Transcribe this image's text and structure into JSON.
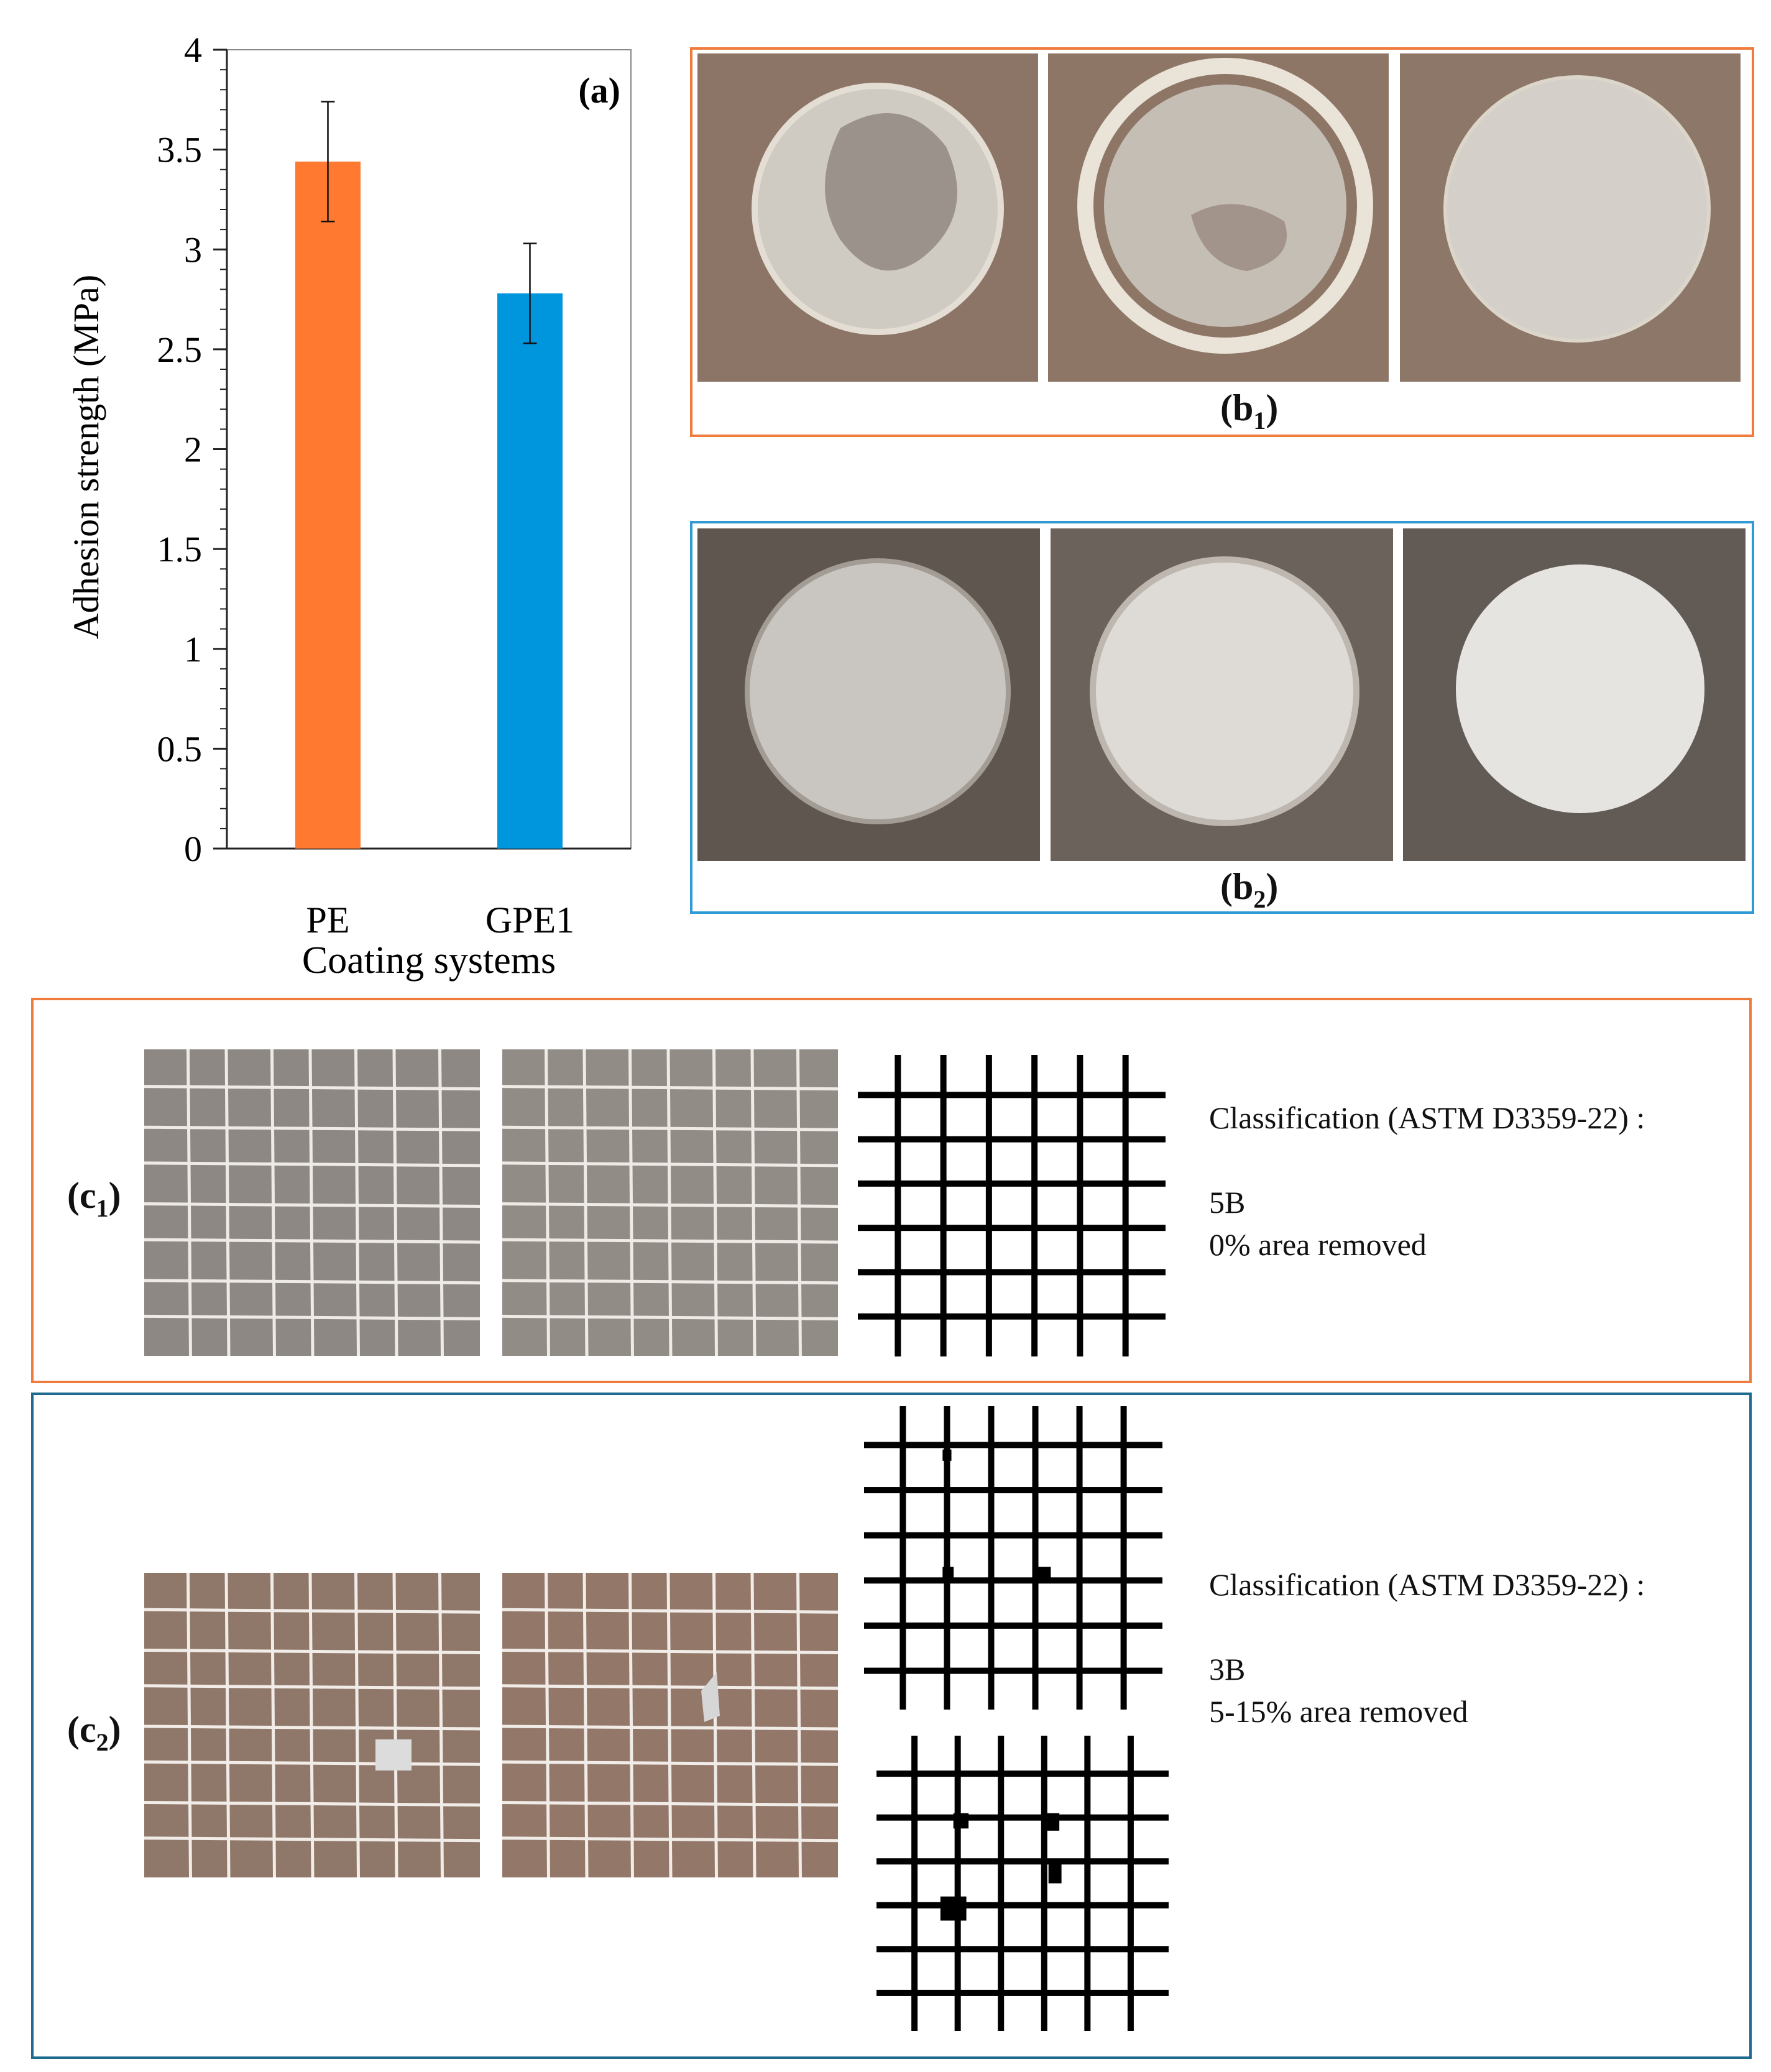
{
  "chart_data": {
    "type": "bar",
    "panel_label": "(a)",
    "categories": [
      "PE",
      "GPE1"
    ],
    "values": [
      3.44,
      2.78
    ],
    "errors": [
      0.3,
      0.25
    ],
    "colors": [
      "#ff7930",
      "#0096de"
    ],
    "ylabel": "Adhesion strength (MPa)",
    "xlabel": "Coating systems",
    "ylim": [
      0,
      4
    ],
    "yticks": [
      "0",
      "0.5",
      "1",
      "1.5",
      "2",
      "2.5",
      "3",
      "3.5",
      "4"
    ],
    "grid": false
  },
  "panels": {
    "b1": {
      "label": "b",
      "sub": "1"
    },
    "b2": {
      "label": "b",
      "sub": "2"
    },
    "c1": {
      "label": "c",
      "sub": "1"
    },
    "c2": {
      "label": "c",
      "sub": "2"
    }
  },
  "classification": {
    "c1": {
      "title": "Classification (ASTM D3359-22) :",
      "grade": "5B",
      "area": "0% area removed"
    },
    "c2": {
      "title": "Classification (ASTM D3359-22) :",
      "grade": "3B",
      "area": "5-15% area removed"
    }
  },
  "colors": {
    "orange_frame": "#ef7b3d",
    "blue_frame": "#2f9ad6",
    "darkblue_frame": "#1e6b8f"
  }
}
